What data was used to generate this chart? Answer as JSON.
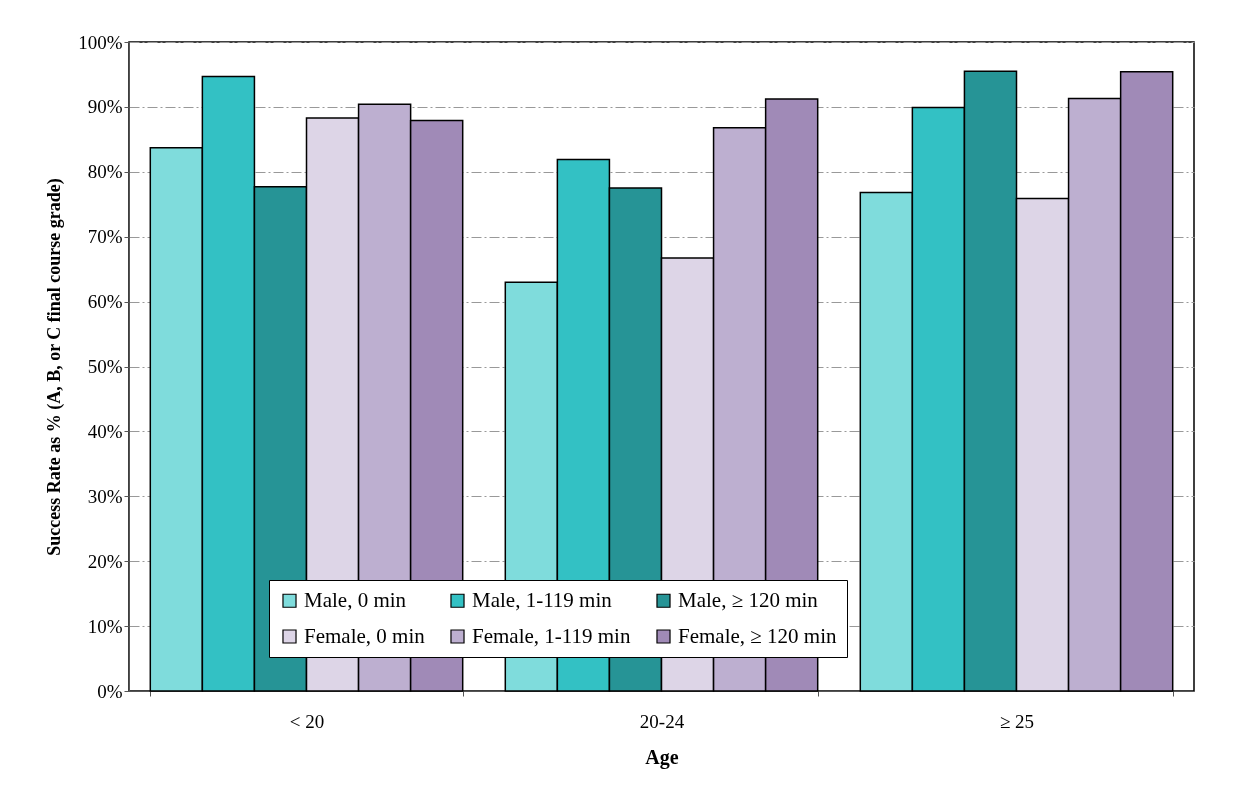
{
  "chart_data": {
    "type": "bar",
    "xlabel": "Age",
    "ylabel": "Success Rate as % (A, B, or C final course grade)",
    "categories": [
      "< 20",
      "20-24",
      "≥ 25"
    ],
    "series": [
      {
        "name": "Male, 0 min",
        "color": "#7fdcdc",
        "values": [
          83.7,
          63.0,
          76.8
        ]
      },
      {
        "name": "Male, 1-119 min",
        "color": "#33c1c4",
        "values": [
          94.7,
          81.9,
          89.9
        ]
      },
      {
        "name": "Male, ≥ 120 min",
        "color": "#269496",
        "values": [
          77.7,
          77.5,
          95.5
        ]
      },
      {
        "name": "Female, 0 min",
        "color": "#ddd5e7",
        "values": [
          88.3,
          66.7,
          75.9
        ]
      },
      {
        "name": "Female, 1-119 min",
        "color": "#bdafd0",
        "values": [
          90.4,
          86.8,
          91.3
        ]
      },
      {
        "name": "Female, ≥ 120 min",
        "color": "#a08ab7",
        "values": [
          87.9,
          91.2,
          95.4
        ]
      }
    ],
    "ylim": [
      0,
      100
    ],
    "yticks": [
      {
        "value": 0,
        "label": "0%"
      },
      {
        "value": 10,
        "label": "10%"
      },
      {
        "value": 20,
        "label": "20%"
      },
      {
        "value": 30,
        "label": "30%"
      },
      {
        "value": 40,
        "label": "40%"
      },
      {
        "value": 50,
        "label": "50%"
      },
      {
        "value": 60,
        "label": "60%"
      },
      {
        "value": 70,
        "label": "70%"
      },
      {
        "value": 80,
        "label": "80%"
      },
      {
        "value": 90,
        "label": "90%"
      },
      {
        "value": 100,
        "label": "100%"
      }
    ],
    "grid": "y",
    "legend": "bottom"
  }
}
